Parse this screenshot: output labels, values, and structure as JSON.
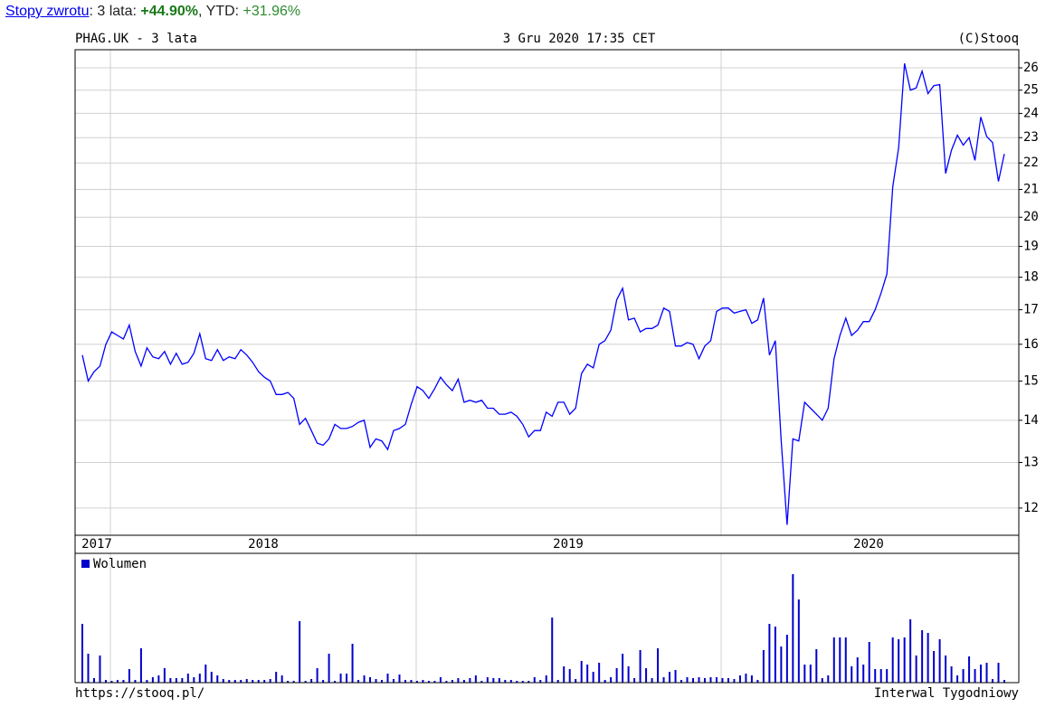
{
  "header": {
    "link": "Stopy zwrotu",
    "period_label": ": 3 lata: ",
    "period_value": "+44.90%",
    "ytd_label": ", YTD: ",
    "ytd_value": "+31.96%"
  },
  "chart_info": {
    "symbol": "PHAG.UK - 3 lata",
    "date": "3 Gru 2020 17:35 CET",
    "copyright": "(C)Stooq",
    "url": "https://stooq.pl/",
    "interval": "Interwal Tygodniowy",
    "year_labels": [
      "2017",
      "2018",
      "2019",
      "2020"
    ]
  },
  "chart_data": [
    {
      "type": "line",
      "log_scale": true,
      "grid": true,
      "color": "#0000ff",
      "ylim": [
        11.44,
        26.84
      ],
      "yticks": [
        12,
        13,
        14,
        15,
        16,
        17,
        18,
        19,
        20,
        21,
        22,
        23,
        24,
        25,
        26
      ],
      "values": [
        15.7,
        15.0,
        15.25,
        15.4,
        16.0,
        16.35,
        16.25,
        16.15,
        16.55,
        15.8,
        15.4,
        15.9,
        15.65,
        15.6,
        15.8,
        15.45,
        15.75,
        15.45,
        15.5,
        15.75,
        16.3,
        15.6,
        15.55,
        15.85,
        15.55,
        15.65,
        15.6,
        15.85,
        15.7,
        15.5,
        15.25,
        15.1,
        15.0,
        14.65,
        14.65,
        14.7,
        14.55,
        13.9,
        14.05,
        13.75,
        13.45,
        13.4,
        13.55,
        13.9,
        13.8,
        13.8,
        13.85,
        13.95,
        14.0,
        13.35,
        13.55,
        13.5,
        13.3,
        13.75,
        13.8,
        13.9,
        14.4,
        14.85,
        14.75,
        14.55,
        14.8,
        15.1,
        14.9,
        14.75,
        15.05,
        14.45,
        14.5,
        14.45,
        14.5,
        14.3,
        14.3,
        14.15,
        14.15,
        14.2,
        14.1,
        13.9,
        13.6,
        13.75,
        13.75,
        14.2,
        14.1,
        14.45,
        14.45,
        14.15,
        14.3,
        15.2,
        15.45,
        15.35,
        16.0,
        16.1,
        16.4,
        17.3,
        17.65,
        16.7,
        16.75,
        16.35,
        16.45,
        16.45,
        16.55,
        17.05,
        16.95,
        15.95,
        15.95,
        16.05,
        16.0,
        15.6,
        15.95,
        16.1,
        16.95,
        17.05,
        17.05,
        16.9,
        16.95,
        17.0,
        16.6,
        16.7,
        17.35,
        15.7,
        16.1,
        13.5,
        11.65,
        13.55,
        13.5,
        14.45,
        14.3,
        14.15,
        14.0,
        14.3,
        15.6,
        16.25,
        16.75,
        16.25,
        16.4,
        16.65,
        16.65,
        17.0,
        17.5,
        18.1,
        21.1,
        22.6,
        26.2,
        25.0,
        25.1,
        25.85,
        24.85,
        25.2,
        25.25,
        21.6,
        22.5,
        23.1,
        22.7,
        23.0,
        22.1,
        23.85,
        23.05,
        22.8,
        21.3,
        22.35
      ]
    },
    {
      "type": "bar",
      "legend": "Wolumen",
      "color": "#0000cc",
      "ylim": [
        0,
        143
      ],
      "values": [
        65,
        32,
        5,
        30,
        3,
        2,
        3,
        3,
        15,
        3,
        38,
        3,
        6,
        8,
        16,
        5,
        5,
        5,
        10,
        6,
        10,
        20,
        12,
        8,
        4,
        3,
        3,
        3,
        4,
        3,
        3,
        3,
        4,
        12,
        8,
        2,
        2,
        68,
        2,
        4,
        16,
        3,
        32,
        2,
        10,
        10,
        43,
        3,
        8,
        6,
        4,
        3,
        10,
        4,
        9,
        3,
        3,
        2,
        3,
        2,
        2,
        6,
        2,
        3,
        5,
        3,
        5,
        8,
        2,
        6,
        5,
        5,
        3,
        3,
        2,
        2,
        2,
        6,
        3,
        8,
        72,
        3,
        18,
        15,
        4,
        24,
        20,
        12,
        22,
        3,
        6,
        16,
        32,
        18,
        5,
        36,
        16,
        5,
        38,
        6,
        12,
        14,
        3,
        6,
        5,
        6,
        5,
        6,
        6,
        5,
        5,
        4,
        8,
        10,
        8,
        3,
        36,
        65,
        62,
        40,
        53,
        120,
        92,
        20,
        20,
        37,
        5,
        8,
        50,
        50,
        50,
        18,
        28,
        20,
        45,
        15,
        15,
        15,
        50,
        48,
        50,
        70,
        30,
        58,
        55,
        35,
        48,
        30,
        18,
        8,
        15,
        29,
        15,
        20,
        22,
        4,
        22,
        3
      ]
    }
  ]
}
